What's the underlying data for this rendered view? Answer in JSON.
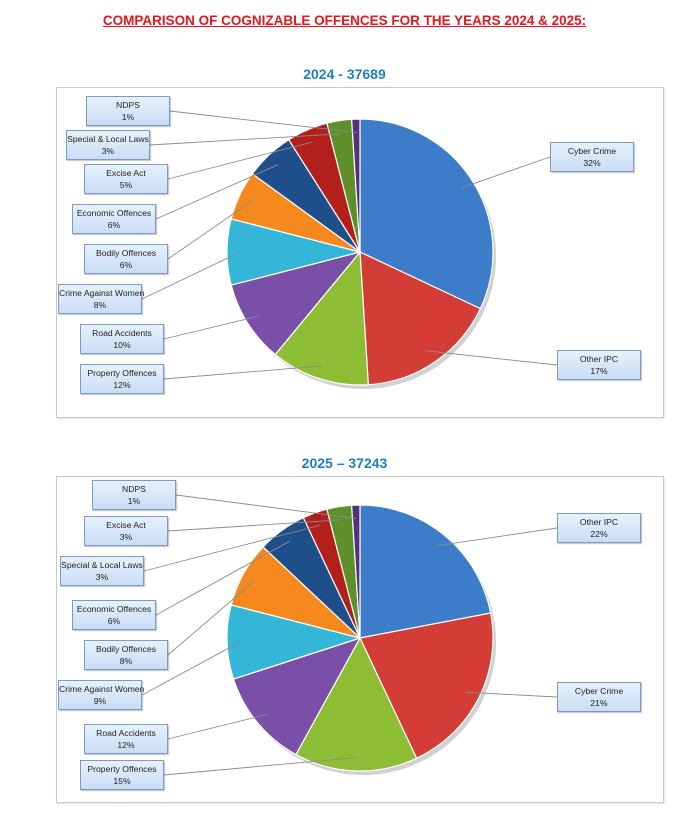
{
  "page": {
    "title": "COMPARISON OF COGNIZABLE OFFENCES FOR THE YEARS 2024 & 2025:"
  },
  "chart_data": [
    {
      "type": "pie",
      "title": "2024 - 37689",
      "slices": [
        {
          "label": "Cyber Crime",
          "value": 32,
          "display": "32%",
          "color": "#3c7cc8"
        },
        {
          "label": "Other IPC",
          "value": 17,
          "display": "17%",
          "color": "#d43c36"
        },
        {
          "label": "Property Offences",
          "value": 12,
          "display": "12%",
          "color": "#8dbd34"
        },
        {
          "label": "Road Accidents",
          "value": 10,
          "display": "10%",
          "color": "#7a4fa8"
        },
        {
          "label": "Crime Against Women",
          "value": 8,
          "display": "8%",
          "color": "#33b6d8"
        },
        {
          "label": "Bodily Offences",
          "value": 6,
          "display": "6%",
          "color": "#f6891e"
        },
        {
          "label": "Economic Offences",
          "value": 6,
          "display": "6%",
          "color": "#1e4f8a"
        },
        {
          "label": "Excise Act",
          "value": 5,
          "display": "5%",
          "color": "#b3201c"
        },
        {
          "label": "Special & Local Laws",
          "value": 3,
          "display": "3%",
          "color": "#5f8f28"
        },
        {
          "label": "NDPS",
          "value": 1,
          "display": "1%",
          "color": "#53327a"
        }
      ]
    },
    {
      "type": "pie",
      "title": "2025 – 37243",
      "slices": [
        {
          "label": "Other IPC",
          "value": 22,
          "display": "22%",
          "color": "#3c7cc8"
        },
        {
          "label": "Cyber Crime",
          "value": 21,
          "display": "21%",
          "color": "#d43c36"
        },
        {
          "label": "Property Offences",
          "value": 15,
          "display": "15%",
          "color": "#8dbd34"
        },
        {
          "label": "Road Accidents",
          "value": 12,
          "display": "12%",
          "color": "#7a4fa8"
        },
        {
          "label": "Crime Against Women",
          "value": 9,
          "display": "9%",
          "color": "#33b6d8"
        },
        {
          "label": "Bodily Offences",
          "value": 8,
          "display": "8%",
          "color": "#f6891e"
        },
        {
          "label": "Economic Offences",
          "value": 6,
          "display": "6%",
          "color": "#1e4f8a"
        },
        {
          "label": "Special & Local Laws",
          "value": 3,
          "display": "3%",
          "color": "#b3201c"
        },
        {
          "label": "Excise Act",
          "value": 3,
          "display": "3%",
          "color": "#5f8f28"
        },
        {
          "label": "NDPS",
          "value": 1,
          "display": "1%",
          "color": "#53327a"
        }
      ]
    }
  ]
}
